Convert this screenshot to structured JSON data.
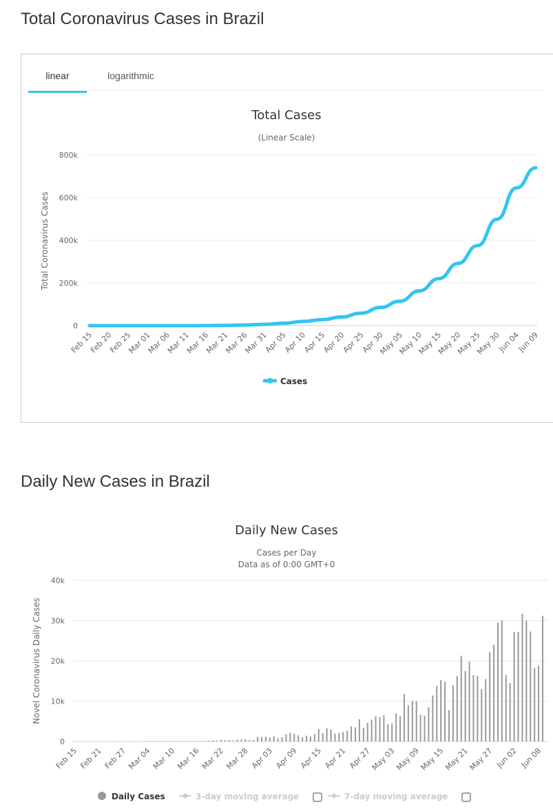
{
  "section1": {
    "heading": "Total Coronavirus Cases in Brazil",
    "tabs": [
      "linear",
      "logarithmic"
    ],
    "active_tab": "linear"
  },
  "section2": {
    "heading": "Daily New Cases in Brazil"
  },
  "colors": {
    "line": "#33c4f2",
    "bar": "#999999",
    "tab_active": "#33c4f2"
  },
  "chart_data": [
    {
      "type": "line",
      "title": "Total Cases",
      "subtitle": "(Linear Scale)",
      "ylabel": "Total Coronavirus Cases",
      "xlabel": "",
      "ylim": [
        0,
        800000
      ],
      "yticks": [
        "0",
        "200k",
        "400k",
        "600k",
        "800k"
      ],
      "ytick_values": [
        0,
        200000,
        400000,
        600000,
        800000
      ],
      "x": [
        "Feb 15",
        "Feb 20",
        "Feb 25",
        "Mar 01",
        "Mar 06",
        "Mar 11",
        "Mar 16",
        "Mar 21",
        "Mar 26",
        "Mar 31",
        "Apr 05",
        "Apr 10",
        "Apr 15",
        "Apr 20",
        "Apr 25",
        "Apr 30",
        "May 05",
        "May 10",
        "May 15",
        "May 20",
        "May 25",
        "May 30",
        "Jun 04",
        "Jun 09"
      ],
      "series": [
        {
          "name": "Cases",
          "values": [
            0,
            0,
            0,
            2,
            13,
            52,
            234,
            1128,
            2985,
            5717,
            11130,
            19638,
            28320,
            40743,
            58509,
            85380,
            114715,
            162699,
            220291,
            291579,
            374898,
            498440,
            645000,
            739503
          ]
        }
      ],
      "legend": "bottom-center",
      "grid": true
    },
    {
      "type": "bar",
      "title": "Daily New Cases",
      "subtitle": "Cases per Day",
      "subtitle2": "Data as of 0:00 GMT+0",
      "ylabel": "Novel Coronavirus Daily Cases",
      "xlabel": "",
      "ylim": [
        0,
        40000
      ],
      "yticks": [
        "0",
        "10k",
        "20k",
        "30k",
        "40k"
      ],
      "ytick_values": [
        0,
        10000,
        20000,
        30000,
        40000
      ],
      "start_date": "Feb 15",
      "end_date": "Jun 09",
      "xticks": [
        "Feb 15",
        "Feb 21",
        "Feb 27",
        "Mar 04",
        "Mar 10",
        "Mar 16",
        "Mar 22",
        "Mar 28",
        "Apr 03",
        "Apr 09",
        "Apr 15",
        "Apr 21",
        "Apr 27",
        "May 03",
        "May 09",
        "May 15",
        "May 21",
        "May 27",
        "Jun 02",
        "Jun 08"
      ],
      "series": [
        {
          "name": "Daily Cases",
          "values": [
            0,
            0,
            0,
            0,
            0,
            0,
            0,
            0,
            0,
            0,
            0,
            1,
            0,
            0,
            1,
            0,
            0,
            0,
            1,
            5,
            5,
            6,
            6,
            6,
            6,
            18,
            25,
            21,
            23,
            79,
            34,
            57,
            137,
            193,
            283,
            224,
            418,
            345,
            310,
            232,
            482,
            502,
            487,
            352,
            323,
            1138,
            1119,
            1208,
            1012,
            1304,
            770,
            1031,
            1873,
            2136,
            1922,
            1546,
            1089,
            1442,
            1261,
            1832,
            3058,
            2105,
            3257,
            2976,
            1996,
            2089,
            2336,
            2678,
            3735,
            3503,
            5514,
            3379,
            4613,
            5385,
            6276,
            6100,
            6500,
            4300,
            4500,
            7000,
            6300,
            11800,
            9000,
            10000,
            10000,
            6600,
            6400,
            8500,
            11400,
            13800,
            15200,
            14800,
            7800,
            14000,
            16300,
            21300,
            17500,
            19800,
            16500,
            16300,
            13000,
            15500,
            22200,
            24000,
            29500,
            30000,
            16500,
            14500,
            27200,
            27200,
            31700,
            30000,
            27300,
            18300,
            18800,
            31200
          ]
        }
      ],
      "legend": [
        "Daily Cases",
        "3-day moving average",
        "7-day moving average"
      ],
      "grid": true
    }
  ]
}
